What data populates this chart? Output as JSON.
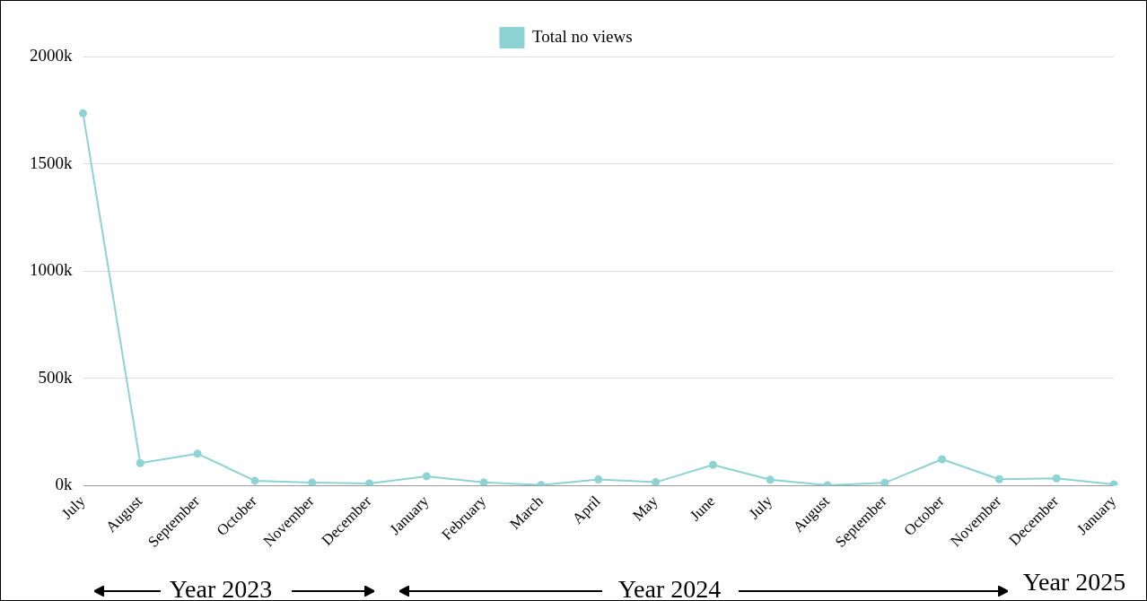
{
  "chart_data": {
    "type": "line",
    "categories": [
      "July",
      "August",
      "September",
      "October",
      "November",
      "December",
      "January",
      "February",
      "March",
      "April",
      "May",
      "June",
      "July",
      "August",
      "September",
      "October",
      "November",
      "December",
      "January"
    ],
    "series": [
      {
        "name": "Total no views",
        "color": "#8dd3d3",
        "values": [
          1735,
          104,
          148,
          22,
          13,
          9,
          43,
          14,
          2,
          28,
          15,
          96,
          27,
          1,
          12,
          122,
          29,
          33,
          5
        ]
      }
    ],
    "ylim": [
      0,
      2000
    ],
    "yticks": [
      {
        "value": 0,
        "label": "0k"
      },
      {
        "value": 500,
        "label": "500k"
      },
      {
        "value": 1000,
        "label": "1000k"
      },
      {
        "value": 1500,
        "label": "1500k"
      },
      {
        "value": 2000,
        "label": "2000k"
      }
    ],
    "grid": "y",
    "legend": "top",
    "marker": "circle",
    "line_style": "solid",
    "annotations": [
      "Year 2023",
      "Year 2024",
      "Year 2025"
    ]
  }
}
